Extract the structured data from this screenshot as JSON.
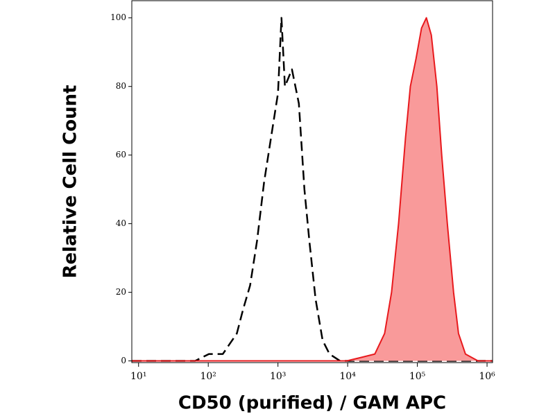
{
  "chart_data": {
    "type": "histogram-overlay",
    "x_label": "CD50 (purified) / GAM APC",
    "y_label": "Relative Cell Count",
    "xscale": "log",
    "xlim": [
      8,
      1200000
    ],
    "ylim": [
      -0.5,
      105
    ],
    "xticks": [
      {
        "value": 10,
        "label": "10¹"
      },
      {
        "value": 100,
        "label": "10²"
      },
      {
        "value": 1000,
        "label": "10³"
      },
      {
        "value": 10000,
        "label": "10⁴"
      },
      {
        "value": 100000,
        "label": "10⁵"
      },
      {
        "value": 1000000,
        "label": "10⁶"
      }
    ],
    "yticks": [
      0,
      20,
      40,
      60,
      80,
      100
    ],
    "series": [
      {
        "color": "#000000",
        "style": "dashed",
        "filled": false,
        "x": [
          8,
          65,
          102,
          162,
          257,
          316,
          398,
          501,
          631,
          794,
          1000,
          1122,
          1259,
          1585,
          1995,
          2399,
          2818,
          3467,
          4365,
          5495,
          7762,
          1200000
        ],
        "values": [
          0,
          0,
          2,
          2,
          8,
          15,
          22,
          35,
          52,
          65,
          78,
          100,
          80,
          85,
          75,
          50,
          35,
          18,
          6,
          2,
          0,
          0
        ]
      },
      {
        "color": "#e8191d",
        "fill": "#f99a9a",
        "style": "solid",
        "filled": true,
        "x": [
          8,
          9772,
          15488,
          24547,
          33884,
          42658,
          53703,
          67608,
          79433,
          95499,
          114815,
          134896,
          158489,
          190546,
          223872,
          269153,
          331131,
          389045,
          489779,
          741310,
          1200000
        ],
        "values": [
          0,
          0,
          1,
          2,
          8,
          20,
          40,
          65,
          80,
          88,
          97,
          100,
          95,
          80,
          60,
          40,
          20,
          8,
          2,
          0,
          0
        ]
      }
    ]
  }
}
